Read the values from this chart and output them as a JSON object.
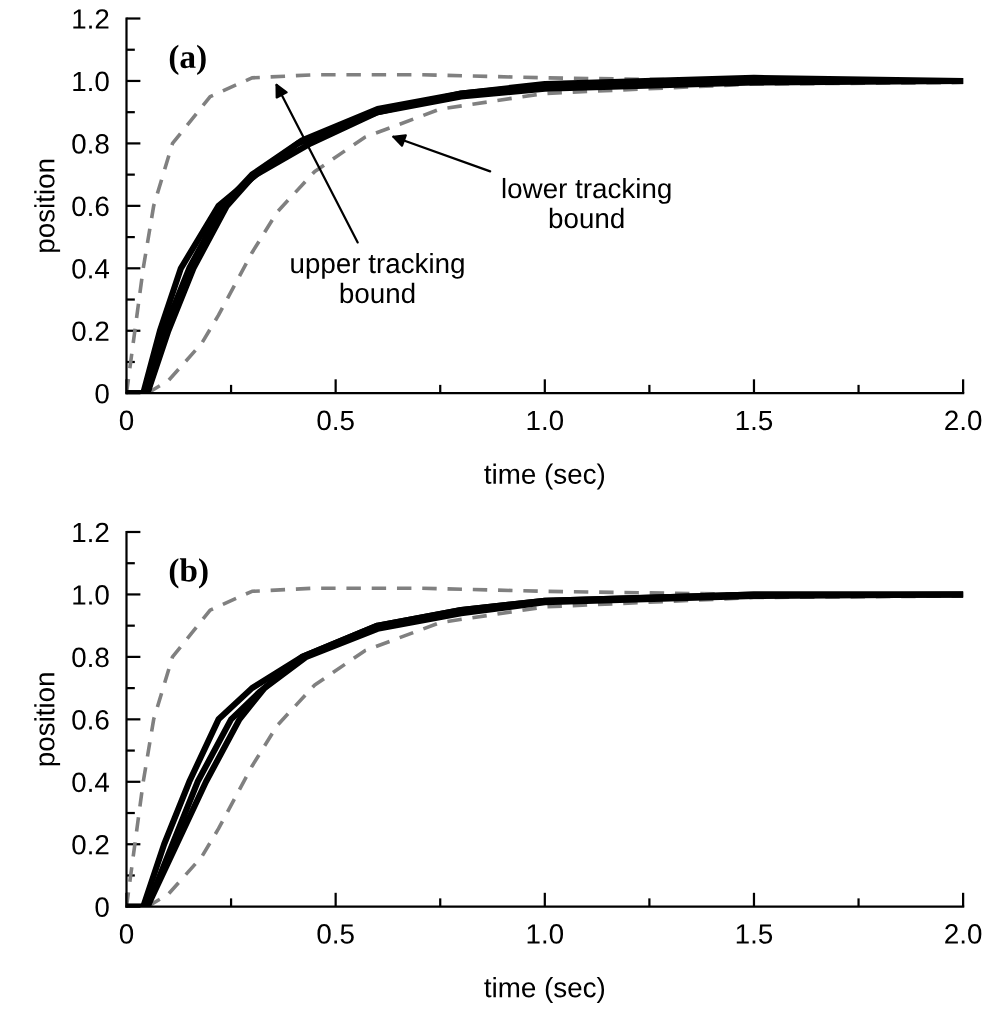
{
  "chart_data": [
    {
      "type": "line",
      "title": "(a)",
      "xlabel": "time (sec)",
      "ylabel": "position",
      "xlim": [
        0,
        2.0
      ],
      "ylim": [
        0,
        1.2
      ],
      "xticks": [
        0,
        {
          "value": 0.25,
          "label": null
        },
        0.5,
        {
          "value": 0.75,
          "label": null
        },
        "1.0",
        {
          "value": 1.25,
          "label": null
        },
        1.5,
        {
          "value": 1.75,
          "label": null
        },
        "2.0"
      ],
      "yticks": [
        0,
        {
          "value": 0.1,
          "label": null
        },
        0.2,
        {
          "value": 0.3,
          "label": null
        },
        0.4,
        {
          "value": 0.5,
          "label": null
        },
        0.6,
        {
          "value": 0.7,
          "label": null
        },
        0.8,
        {
          "value": 0.9,
          "label": null
        },
        "1.0",
        {
          "value": 1.1,
          "label": null
        },
        1.2
      ],
      "grid": false,
      "legend": false,
      "annotations": [
        {
          "text": "lower tracking\nbound",
          "x": 0.62,
          "y": 0.83
        },
        {
          "text": "upper tracking\nbound",
          "x": 0.35,
          "y": 1.01
        }
      ],
      "series": [
        {
          "color": "#808080",
          "line_style": "dashed",
          "x": [
            0,
            0.02,
            0.04,
            0.065,
            0.11,
            0.2,
            0.3,
            0.45,
            0.7,
            1.0,
            1.5,
            2.0
          ],
          "values": [
            0,
            0.2,
            0.4,
            0.6,
            0.8,
            0.95,
            1.01,
            1.02,
            1.02,
            1.01,
            1.0,
            1.0
          ]
        },
        {
          "color": "#808080",
          "line_style": "dashed",
          "x": [
            0.05,
            0.1,
            0.14,
            0.18,
            0.22,
            0.26,
            0.3,
            0.36,
            0.45,
            0.57,
            0.75,
            1.0,
            1.5,
            2.0
          ],
          "values": [
            0,
            0.04,
            0.1,
            0.16,
            0.25,
            0.35,
            0.45,
            0.58,
            0.71,
            0.82,
            0.91,
            0.96,
            0.99,
            0.995
          ]
        },
        {
          "color": "#000000",
          "line_style": "solid",
          "x": [
            0,
            0.04,
            0.08,
            0.13,
            0.22,
            0.31,
            0.44,
            0.6,
            0.8,
            1.0,
            1.5,
            2.0
          ],
          "values": [
            0,
            0,
            0.2,
            0.4,
            0.6,
            0.7,
            0.8,
            0.9,
            0.96,
            0.99,
            1.01,
            1.0
          ]
        },
        {
          "color": "#000000",
          "line_style": "solid",
          "x": [
            0,
            0.05,
            0.09,
            0.15,
            0.23,
            0.3,
            0.42,
            0.6,
            0.8,
            1.0,
            1.5,
            2.0
          ],
          "values": [
            0,
            0,
            0.2,
            0.4,
            0.6,
            0.7,
            0.81,
            0.91,
            0.96,
            0.985,
            1.0,
            1.0
          ]
        },
        {
          "color": "#000000",
          "line_style": "solid",
          "x": [
            0,
            0.05,
            0.1,
            0.16,
            0.24,
            0.3,
            0.41,
            0.6,
            0.8,
            1.0,
            1.5,
            2.0
          ],
          "values": [
            0,
            0,
            0.2,
            0.4,
            0.6,
            0.69,
            0.8,
            0.9,
            0.95,
            0.975,
            0.995,
            1.0
          ]
        }
      ]
    },
    {
      "type": "line",
      "title": "(b)",
      "xlabel": "time (sec)",
      "ylabel": "position",
      "xlim": [
        0,
        2.0
      ],
      "ylim": [
        0,
        1.2
      ],
      "xticks": [
        0,
        {
          "value": 0.25,
          "label": null
        },
        0.5,
        {
          "value": 0.75,
          "label": null
        },
        "1.0",
        {
          "value": 1.25,
          "label": null
        },
        1.5,
        {
          "value": 1.75,
          "label": null
        },
        "2.0"
      ],
      "yticks": [
        0,
        {
          "value": 0.1,
          "label": null
        },
        0.2,
        {
          "value": 0.3,
          "label": null
        },
        0.4,
        {
          "value": 0.5,
          "label": null
        },
        0.6,
        {
          "value": 0.7,
          "label": null
        },
        0.8,
        {
          "value": 0.9,
          "label": null
        },
        "1.0",
        {
          "value": 1.1,
          "label": null
        },
        1.2
      ],
      "grid": false,
      "legend": false,
      "series": [
        {
          "color": "#808080",
          "line_style": "dashed",
          "x": [
            0,
            0.02,
            0.04,
            0.065,
            0.11,
            0.2,
            0.3,
            0.45,
            0.7,
            1.0,
            1.5,
            2.0
          ],
          "values": [
            0,
            0.2,
            0.4,
            0.6,
            0.8,
            0.95,
            1.01,
            1.02,
            1.02,
            1.01,
            1.0,
            1.0
          ]
        },
        {
          "color": "#808080",
          "line_style": "dashed",
          "x": [
            0.05,
            0.1,
            0.14,
            0.18,
            0.22,
            0.26,
            0.3,
            0.36,
            0.45,
            0.57,
            0.75,
            1.0,
            1.5,
            2.0
          ],
          "values": [
            0,
            0.04,
            0.1,
            0.16,
            0.25,
            0.35,
            0.45,
            0.58,
            0.71,
            0.82,
            0.91,
            0.96,
            0.99,
            0.995
          ]
        },
        {
          "color": "#000000",
          "line_style": "solid",
          "x": [
            0,
            0.04,
            0.09,
            0.15,
            0.22,
            0.3,
            0.42,
            0.6,
            0.8,
            1.0,
            1.5,
            2.0
          ],
          "values": [
            0,
            0,
            0.2,
            0.4,
            0.6,
            0.7,
            0.8,
            0.9,
            0.95,
            0.98,
            1.0,
            1.0
          ]
        },
        {
          "color": "#000000",
          "line_style": "solid",
          "x": [
            0,
            0.05,
            0.11,
            0.17,
            0.25,
            0.32,
            0.42,
            0.6,
            0.8,
            1.0,
            1.5,
            2.0
          ],
          "values": [
            0,
            0,
            0.2,
            0.4,
            0.6,
            0.69,
            0.8,
            0.9,
            0.95,
            0.98,
            1.0,
            1.0
          ]
        },
        {
          "color": "#000000",
          "line_style": "solid",
          "x": [
            0,
            0.05,
            0.12,
            0.19,
            0.27,
            0.33,
            0.43,
            0.6,
            0.8,
            1.0,
            1.5,
            2.0
          ],
          "values": [
            0,
            0,
            0.2,
            0.4,
            0.6,
            0.7,
            0.8,
            0.89,
            0.94,
            0.975,
            0.995,
            1.0
          ]
        }
      ]
    }
  ]
}
